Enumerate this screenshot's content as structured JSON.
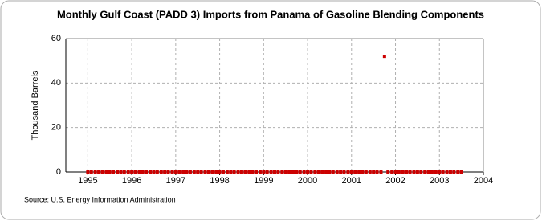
{
  "chart_data": {
    "type": "scatter",
    "title": "Monthly Gulf Coast (PADD 3) Imports from Panama of Gasoline Blending Components",
    "y_label": "Thousand Barrels",
    "source": "Source: U.S. Energy Information Administration",
    "color": "#cc0000",
    "grid": true,
    "xlim": [
      1994.5,
      2004
    ],
    "xticks": [
      1995,
      1996,
      1997,
      1998,
      1999,
      2000,
      2001,
      2002,
      2003,
      2004
    ],
    "ylim": [
      0,
      60
    ],
    "yticks": [
      0,
      20,
      40,
      60
    ],
    "x": [
      1995,
      1995.08,
      1995.17,
      1995.25,
      1995.33,
      1995.42,
      1995.5,
      1995.58,
      1995.67,
      1995.75,
      1995.83,
      1995.92,
      1996,
      1996.08,
      1996.17,
      1996.25,
      1996.33,
      1996.42,
      1996.5,
      1996.58,
      1996.67,
      1996.75,
      1996.83,
      1996.92,
      1997,
      1997.08,
      1997.17,
      1997.25,
      1997.33,
      1997.42,
      1997.5,
      1997.58,
      1997.67,
      1997.75,
      1997.83,
      1997.92,
      1998,
      1998.08,
      1998.17,
      1998.25,
      1998.33,
      1998.42,
      1998.5,
      1998.58,
      1998.67,
      1998.75,
      1998.83,
      1998.92,
      1999,
      1999.08,
      1999.17,
      1999.25,
      1999.33,
      1999.42,
      1999.5,
      1999.58,
      1999.67,
      1999.75,
      1999.83,
      1999.92,
      2000,
      2000.08,
      2000.17,
      2000.25,
      2000.33,
      2000.42,
      2000.5,
      2000.58,
      2000.67,
      2000.75,
      2000.83,
      2000.92,
      2001,
      2001.08,
      2001.17,
      2001.25,
      2001.33,
      2001.42,
      2001.5,
      2001.58,
      2001.67,
      2001.75,
      2001.83,
      2001.92,
      2002,
      2002.08,
      2002.17,
      2002.25,
      2002.33,
      2002.42,
      2002.5,
      2002.58,
      2002.67,
      2002.75,
      2002.83,
      2002.92,
      2003,
      2003.08,
      2003.17,
      2003.25,
      2003.33,
      2003.42,
      2003.5
    ],
    "values": [
      0,
      0,
      0,
      0,
      0,
      0,
      0,
      0,
      0,
      0,
      0,
      0,
      0,
      0,
      0,
      0,
      0,
      0,
      0,
      0,
      0,
      0,
      0,
      0,
      0,
      0,
      0,
      0,
      0,
      0,
      0,
      0,
      0,
      0,
      0,
      0,
      0,
      0,
      0,
      0,
      0,
      0,
      0,
      0,
      0,
      0,
      0,
      0,
      0,
      0,
      0,
      0,
      0,
      0,
      0,
      0,
      0,
      0,
      0,
      0,
      0,
      0,
      0,
      0,
      0,
      0,
      0,
      0,
      0,
      0,
      0,
      0,
      0,
      0,
      0,
      0,
      0,
      0,
      0,
      0,
      0,
      52,
      0,
      0,
      0,
      0,
      0,
      0,
      0,
      0,
      0,
      0,
      0,
      0,
      0,
      0,
      0,
      0,
      0,
      0,
      0,
      0,
      0
    ]
  }
}
